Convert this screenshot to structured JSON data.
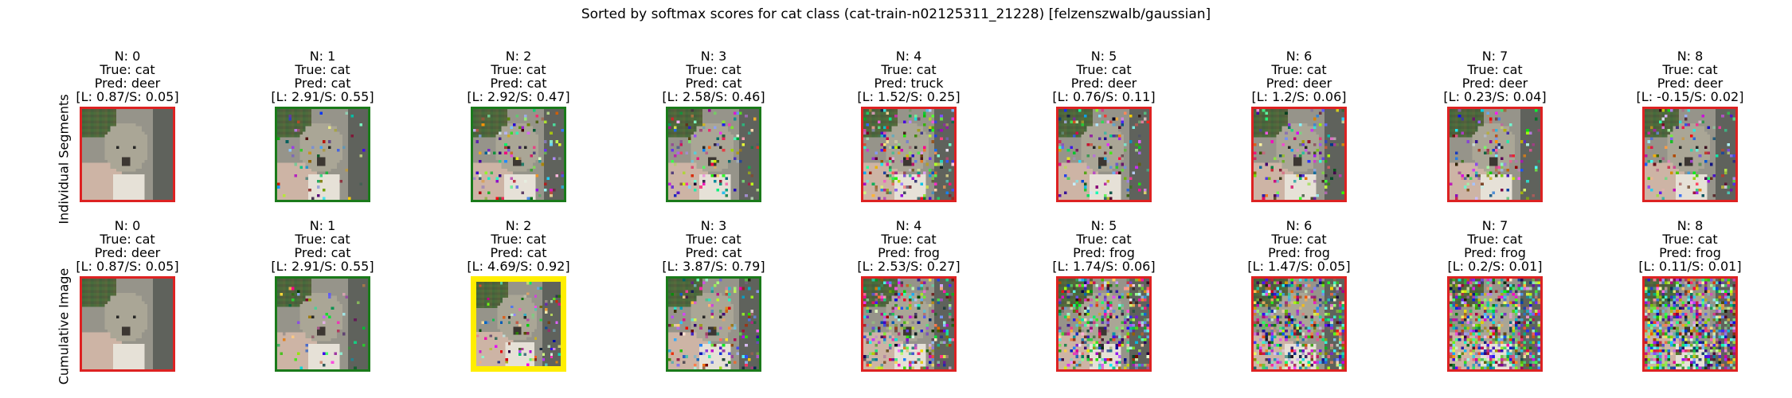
{
  "chart_data": {
    "type": "image-grid",
    "title": "Sorted by softmax scores for cat class (cat-train-n02125311_21228) [felzenszwalb/gaussian]",
    "row_labels": [
      "Individual Segments",
      "Cumulative Image"
    ],
    "colors": {
      "cat": "#cc2222",
      "deer": "#cc2222",
      "truck": "#cc2222",
      "frog": "#cc2222",
      "correct": "#1a7a1a",
      "highlight": "#ffee00",
      "incorrect": "#dd2222"
    },
    "rows": [
      {
        "panels": [
          {
            "n": "N: 0",
            "true": "True: cat",
            "pred": "Pred: deer",
            "score": "[L: 0.87/S: 0.05]",
            "status": "incorrect",
            "noise": 0.0
          },
          {
            "n": "N: 1",
            "true": "True: cat",
            "pred": "Pred: cat",
            "score": "[L: 2.91/S: 0.55]",
            "status": "correct",
            "noise": 0.05
          },
          {
            "n": "N: 2",
            "true": "True: cat",
            "pred": "Pred: cat",
            "score": "[L: 2.92/S: 0.47]",
            "status": "correct",
            "noise": 0.1
          },
          {
            "n": "N: 3",
            "true": "True: cat",
            "pred": "Pred: cat",
            "score": "[L: 2.58/S: 0.46]",
            "status": "correct",
            "noise": 0.12
          },
          {
            "n": "N: 4",
            "true": "True: cat",
            "pred": "Pred: truck",
            "score": "[L: 1.52/S: 0.25]",
            "status": "incorrect",
            "noise": 0.2
          },
          {
            "n": "N: 5",
            "true": "True: cat",
            "pred": "Pred: deer",
            "score": "[L: 0.76/S: 0.11]",
            "status": "incorrect",
            "noise": 0.12
          },
          {
            "n": "N: 6",
            "true": "True: cat",
            "pred": "Pred: deer",
            "score": "[L: 1.2/S: 0.06]",
            "status": "incorrect",
            "noise": 0.12
          },
          {
            "n": "N: 7",
            "true": "True: cat",
            "pred": "Pred: deer",
            "score": "[L: 0.23/S: 0.04]",
            "status": "incorrect",
            "noise": 0.12
          },
          {
            "n": "N: 8",
            "true": "True: cat",
            "pred": "Pred: deer",
            "score": "[L: -0.15/S: 0.02]",
            "status": "incorrect",
            "noise": 0.12
          }
        ]
      },
      {
        "panels": [
          {
            "n": "N: 0",
            "true": "True: cat",
            "pred": "Pred: deer",
            "score": "[L: 0.87/S: 0.05]",
            "status": "incorrect",
            "noise": 0.0
          },
          {
            "n": "N: 1",
            "true": "True: cat",
            "pred": "Pred: cat",
            "score": "[L: 2.91/S: 0.55]",
            "status": "correct",
            "noise": 0.05
          },
          {
            "n": "N: 2",
            "true": "True: cat",
            "pred": "Pred: cat",
            "score": "[L: 4.69/S: 0.92]",
            "status": "highlight",
            "noise": 0.1
          },
          {
            "n": "N: 3",
            "true": "True: cat",
            "pred": "Pred: cat",
            "score": "[L: 3.87/S: 0.79]",
            "status": "correct",
            "noise": 0.15
          },
          {
            "n": "N: 4",
            "true": "True: cat",
            "pred": "Pred: frog",
            "score": "[L: 2.53/S: 0.27]",
            "status": "incorrect",
            "noise": 0.3
          },
          {
            "n": "N: 5",
            "true": "True: cat",
            "pred": "Pred: frog",
            "score": "[L: 1.74/S: 0.06]",
            "status": "incorrect",
            "noise": 0.38
          },
          {
            "n": "N: 6",
            "true": "True: cat",
            "pred": "Pred: frog",
            "score": "[L: 1.47/S: 0.05]",
            "status": "incorrect",
            "noise": 0.45
          },
          {
            "n": "N: 7",
            "true": "True: cat",
            "pred": "Pred: frog",
            "score": "[L: 0.2/S: 0.01]",
            "status": "incorrect",
            "noise": 0.52
          },
          {
            "n": "N: 8",
            "true": "True: cat",
            "pred": "Pred: frog",
            "score": "[L: 0.11/S: 0.01]",
            "status": "incorrect",
            "noise": 0.6
          }
        ]
      }
    ]
  }
}
